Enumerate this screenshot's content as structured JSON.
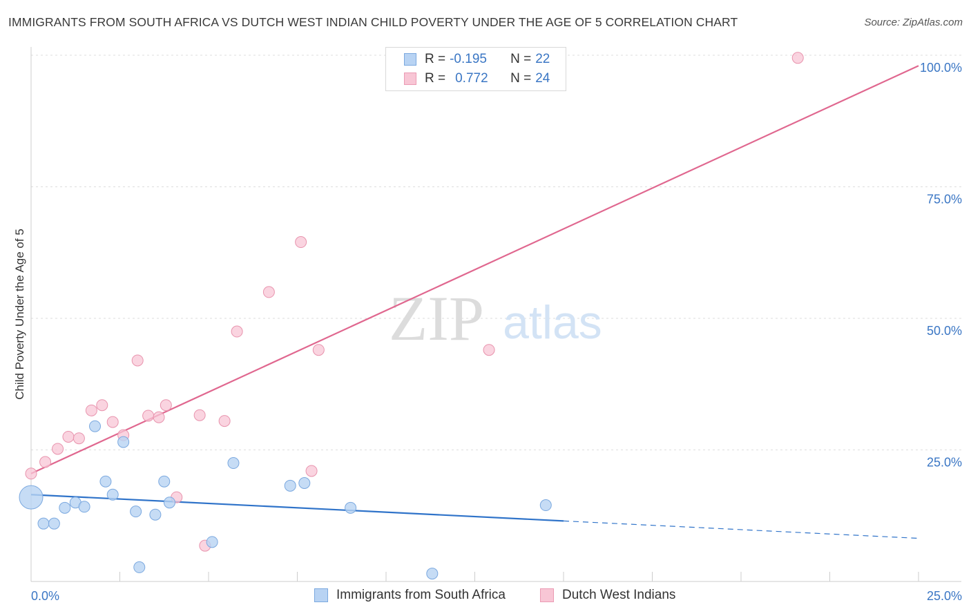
{
  "title": "IMMIGRANTS FROM SOUTH AFRICA VS DUTCH WEST INDIAN CHILD POVERTY UNDER THE AGE OF 5 CORRELATION CHART",
  "source": "Source: ZipAtlas.com",
  "watermark": {
    "zip": "ZIP",
    "atlas": "atlas"
  },
  "legend": {
    "r_label": "R =",
    "n_label": "N =",
    "rows": [
      {
        "r": "-0.195",
        "n": "22"
      },
      {
        "r": "0.772",
        "n": "24"
      }
    ]
  },
  "bottom_legend": [
    "Immigrants from South Africa",
    "Dutch West Indians"
  ],
  "chart_data": {
    "type": "scatter",
    "title": "IMMIGRANTS FROM SOUTH AFRICA VS DUTCH WEST INDIAN CHILD POVERTY UNDER THE AGE OF 5 CORRELATION CHART",
    "xlabel": "",
    "ylabel": "Child Poverty Under the Age of 5",
    "xlim": [
      0,
      25
    ],
    "ylim": [
      0,
      100
    ],
    "x_tick_labels": [
      "0.0%",
      "25.0%"
    ],
    "y_tick_labels": [
      {
        "value": 25,
        "label": "25.0%"
      },
      {
        "value": 50,
        "label": "50.0%"
      },
      {
        "value": 75,
        "label": "75.0%"
      },
      {
        "value": 100,
        "label": "100.0%"
      }
    ],
    "grid": true,
    "colors": {
      "series1": "#2f73c9",
      "series1_fill": "#b8d3f3",
      "series2": "#e0678f",
      "series2_fill": "#f8c6d5"
    },
    "series": [
      {
        "name": "Immigrants from South Africa",
        "r": -0.195,
        "n": 22,
        "points": [
          {
            "x": 0.0,
            "y": 16.0,
            "big": true
          },
          {
            "x": 0.35,
            "y": 11.0
          },
          {
            "x": 0.65,
            "y": 11.0
          },
          {
            "x": 0.95,
            "y": 14.0
          },
          {
            "x": 1.25,
            "y": 15.0
          },
          {
            "x": 1.5,
            "y": 14.2
          },
          {
            "x": 1.8,
            "y": 29.5
          },
          {
            "x": 2.1,
            "y": 19.0
          },
          {
            "x": 2.3,
            "y": 16.5
          },
          {
            "x": 2.6,
            "y": 26.5
          },
          {
            "x": 2.95,
            "y": 13.3
          },
          {
            "x": 3.05,
            "y": 2.7
          },
          {
            "x": 3.5,
            "y": 12.7
          },
          {
            "x": 3.75,
            "y": 19.0
          },
          {
            "x": 3.9,
            "y": 15.0
          },
          {
            "x": 5.1,
            "y": 7.5
          },
          {
            "x": 5.7,
            "y": 22.5
          },
          {
            "x": 7.3,
            "y": 18.2
          },
          {
            "x": 7.7,
            "y": 18.7
          },
          {
            "x": 9.0,
            "y": 14.0
          },
          {
            "x": 11.3,
            "y": 1.5
          },
          {
            "x": 14.5,
            "y": 14.5
          }
        ],
        "trend": {
          "x0": 0,
          "y0": 16.5,
          "x1": 15.0,
          "y1": 11.5,
          "dash_x1": 25.0,
          "dash_y1": 8.2
        }
      },
      {
        "name": "Dutch West Indians",
        "r": 0.772,
        "n": 24,
        "points": [
          {
            "x": 0.0,
            "y": 20.5
          },
          {
            "x": 0.4,
            "y": 22.7
          },
          {
            "x": 0.75,
            "y": 25.2
          },
          {
            "x": 1.05,
            "y": 27.5
          },
          {
            "x": 1.35,
            "y": 27.2
          },
          {
            "x": 1.7,
            "y": 32.5
          },
          {
            "x": 2.0,
            "y": 33.5
          },
          {
            "x": 2.3,
            "y": 30.3
          },
          {
            "x": 2.6,
            "y": 27.8
          },
          {
            "x": 3.0,
            "y": 42.0
          },
          {
            "x": 3.3,
            "y": 31.5
          },
          {
            "x": 3.6,
            "y": 31.2
          },
          {
            "x": 3.8,
            "y": 33.5
          },
          {
            "x": 4.1,
            "y": 16.0
          },
          {
            "x": 4.75,
            "y": 31.6
          },
          {
            "x": 4.9,
            "y": 6.8
          },
          {
            "x": 5.45,
            "y": 30.5
          },
          {
            "x": 5.8,
            "y": 47.5
          },
          {
            "x": 6.7,
            "y": 55.0
          },
          {
            "x": 7.6,
            "y": 64.5
          },
          {
            "x": 7.9,
            "y": 21.0
          },
          {
            "x": 8.1,
            "y": 44.0
          },
          {
            "x": 12.9,
            "y": 44.0
          },
          {
            "x": 21.6,
            "y": 99.5
          }
        ],
        "trend": {
          "x0": 0,
          "y0": 20.5,
          "x1": 25.0,
          "y1": 98.0
        }
      }
    ]
  }
}
